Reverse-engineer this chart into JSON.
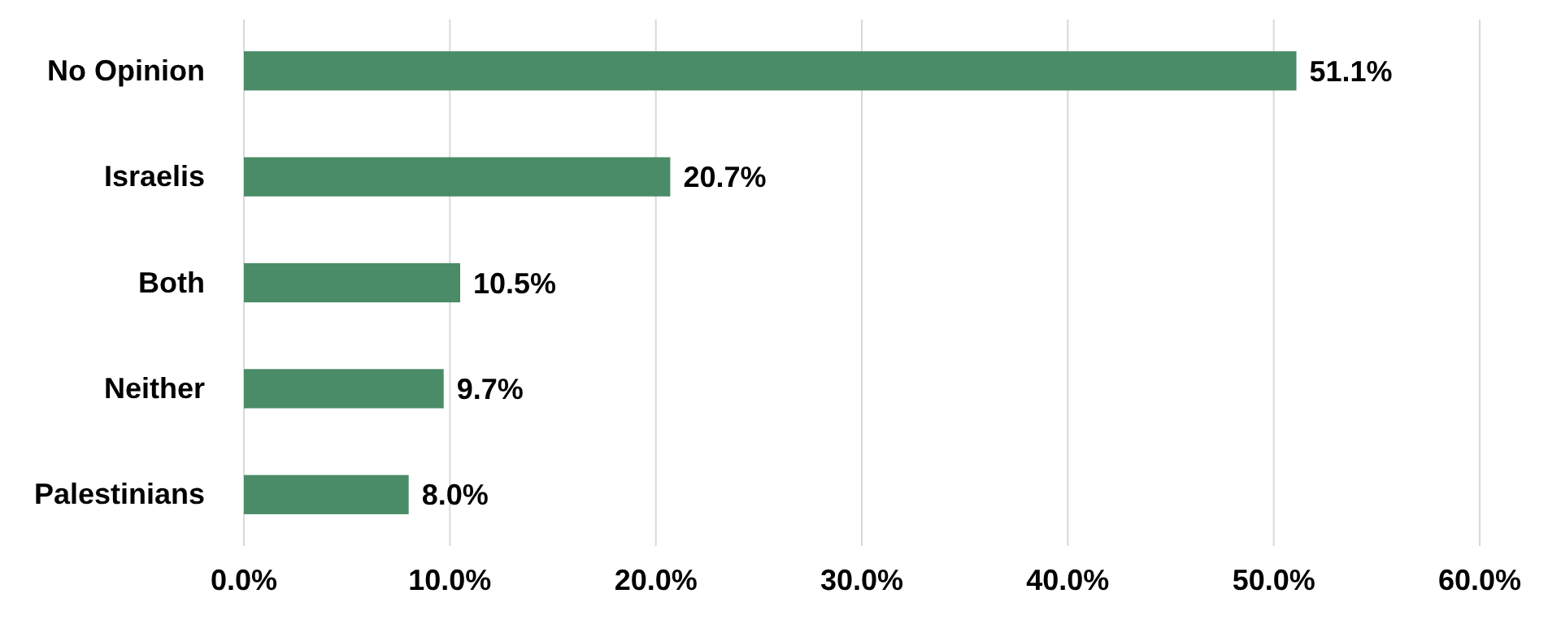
{
  "chart_data": {
    "type": "bar",
    "orientation": "horizontal",
    "categories": [
      "No Opinion",
      "Israelis",
      "Both",
      "Neither",
      "Palestinians"
    ],
    "values": [
      51.1,
      20.7,
      10.5,
      9.7,
      8.0
    ],
    "value_labels": [
      "51.1%",
      "20.7%",
      "10.5%",
      "9.7%",
      "8.0%"
    ],
    "color": "#4a8c67",
    "xlim": [
      0,
      60
    ],
    "xticks": [
      {
        "value": 0,
        "label": "0.0%"
      },
      {
        "value": 10,
        "label": "10.0%"
      },
      {
        "value": 20,
        "label": "20.0%"
      },
      {
        "value": 30,
        "label": "30.0%"
      },
      {
        "value": 40,
        "label": "40.0%"
      },
      {
        "value": 50,
        "label": "50.0%"
      },
      {
        "value": 60,
        "label": "60.0%"
      }
    ],
    "grid": "x"
  }
}
